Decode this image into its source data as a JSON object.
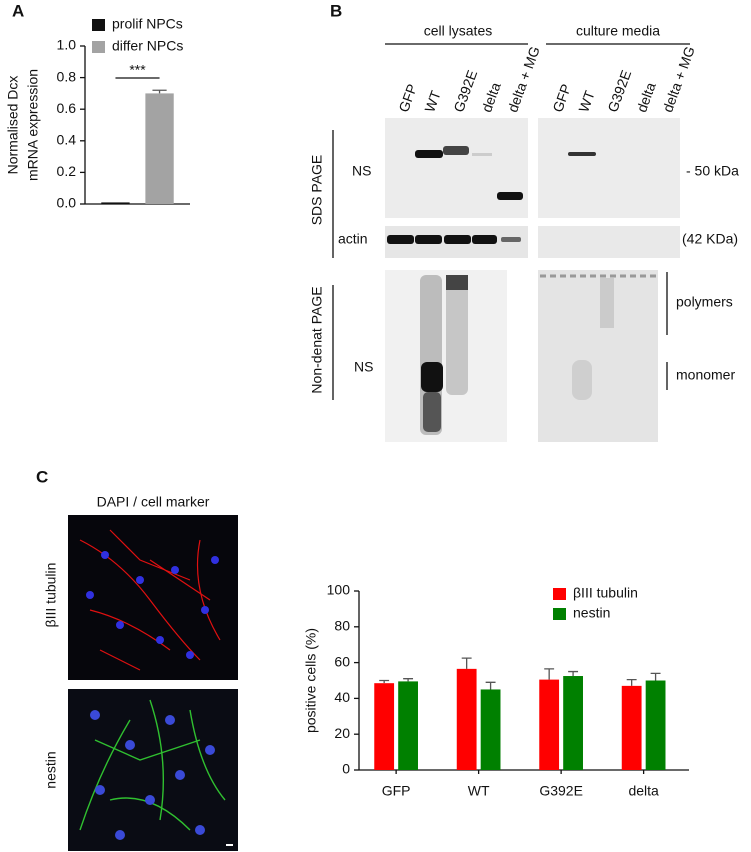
{
  "panels": {
    "a": "A",
    "b": "B",
    "c": "C"
  },
  "chart_data": [
    {
      "type": "bar",
      "ylabel": [
        "Normalised Dcx",
        "mRNA expression"
      ],
      "categories": [
        null
      ],
      "series": [
        {
          "name": "prolif NPCs",
          "color": "#111111",
          "values": [
            0.01
          ]
        },
        {
          "name": "differ NPCs",
          "color": "#a3a3a3",
          "values": [
            0.7
          ],
          "errors": [
            0.02
          ]
        }
      ],
      "annotation": "***",
      "ylim": [
        0,
        1.0
      ],
      "yticks": [
        {
          "value": 0,
          "label": "0.0"
        },
        0.2,
        0.4,
        0.6,
        0.8,
        {
          "value": 1.0,
          "label": "1.0"
        }
      ],
      "legend": "top"
    },
    {
      "type": "bar",
      "ylabel": [
        "positive cells (%)"
      ],
      "categories": [
        "GFP",
        "WT",
        "G392E",
        "delta"
      ],
      "series": [
        {
          "name": "βIII tubulin",
          "color": "#ff0000",
          "values": [
            48.5,
            56.5,
            50.5,
            47
          ],
          "errors": [
            1.5,
            6,
            6,
            3.5
          ]
        },
        {
          "name": "nestin",
          "color": "#008000",
          "values": [
            49.5,
            45,
            52.5,
            50
          ],
          "errors": [
            1.5,
            4,
            2.5,
            4
          ]
        }
      ],
      "ylim": [
        0,
        100
      ],
      "yticks": [
        0,
        20,
        40,
        60,
        80,
        100
      ],
      "legend": "upper right"
    }
  ],
  "blot": {
    "groups": [
      "cell lysates",
      "culture media"
    ],
    "lanes": [
      "GFP",
      "WT",
      "G392E",
      "delta",
      "delta + MG"
    ],
    "gel_sds": "SDS PAGE",
    "gel_native": "Non-denat PAGE",
    "ns_sds": "NS",
    "ns_native": "NS",
    "actin": "actin",
    "marker_50": "- 50 kDa",
    "marker_42": "(42 KDa)",
    "polymers": "polymers",
    "monomer": "monomer"
  },
  "micrographs": {
    "title": "DAPI / cell marker",
    "rows": [
      "βIII tubulin",
      "nestin"
    ]
  }
}
